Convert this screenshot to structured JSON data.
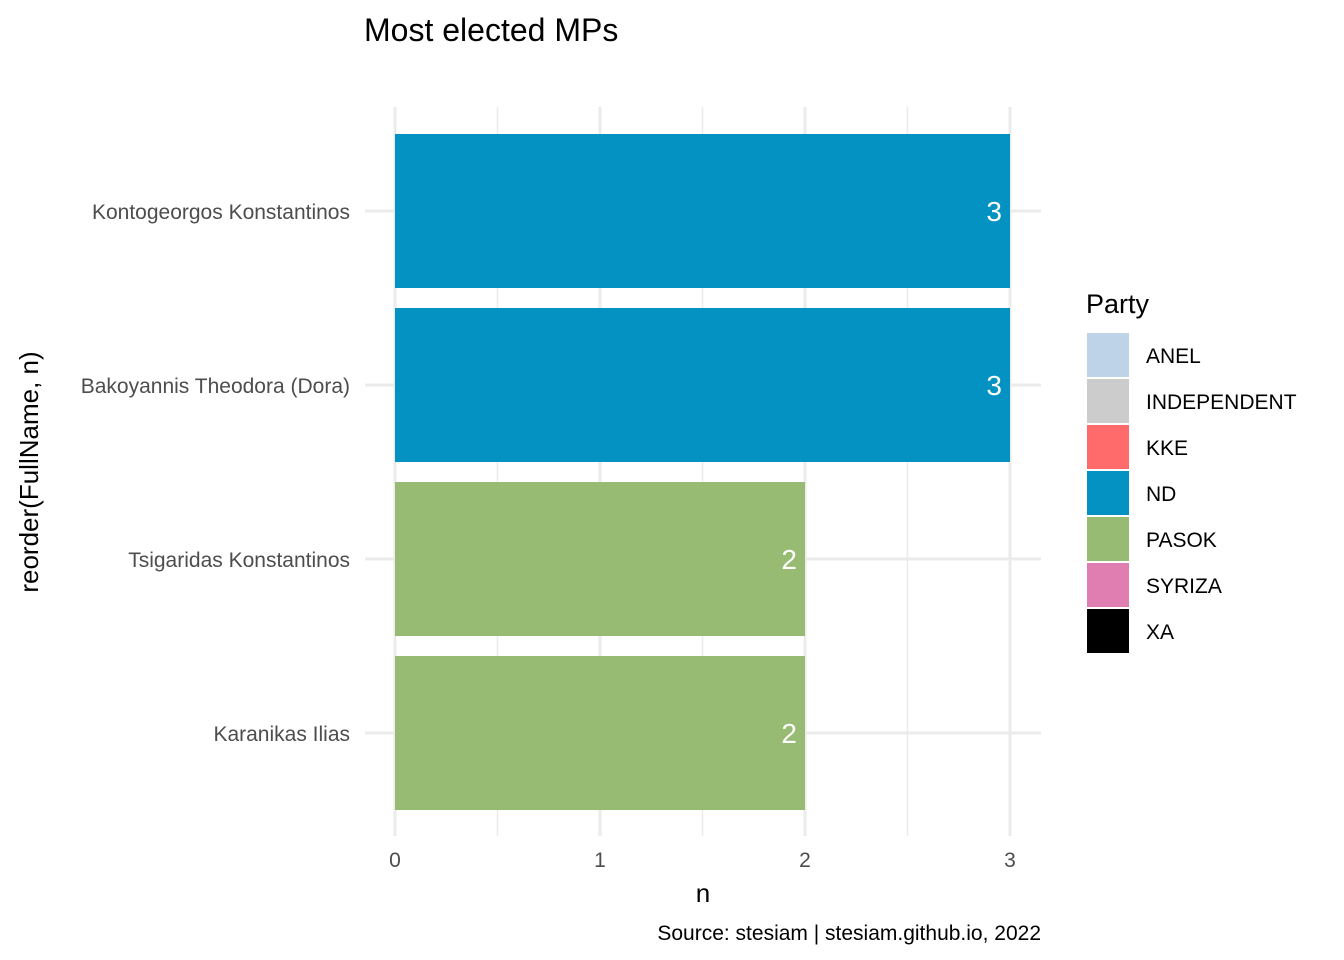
{
  "chart_data": {
    "type": "bar",
    "orientation": "horizontal",
    "title": "Most elected MPs",
    "xlabel": "n",
    "ylabel": "reorder(FullName, n)",
    "caption": "Source: stesiam | stesiam.github.io, 2022",
    "xlim": [
      0,
      3
    ],
    "x_ticks": [
      "0",
      "1",
      "2",
      "3"
    ],
    "grid": true,
    "categories": [
      "Kontogeorgos Konstantinos",
      "Bakoyannis Theodora (Dora)",
      "Tsigaridas Konstantinos",
      "Karanikas Ilias"
    ],
    "values": [
      3,
      3,
      2,
      2
    ],
    "bar_labels": [
      "3",
      "3",
      "2",
      "2"
    ],
    "bar_party": [
      "ND",
      "ND",
      "PASOK",
      "PASOK"
    ],
    "legend": {
      "title": "Party",
      "placement": "right",
      "items": [
        {
          "label": "ANEL",
          "color": "#bed2e8"
        },
        {
          "label": "INDEPENDENT",
          "color": "#cccccc"
        },
        {
          "label": "KKE",
          "color": "#ff6b6b"
        },
        {
          "label": "ND",
          "color": "#0492c2"
        },
        {
          "label": "PASOK",
          "color": "#97bb72"
        },
        {
          "label": "SYRIZA",
          "color": "#e07db1"
        },
        {
          "label": "XA",
          "color": "#000000"
        }
      ]
    }
  }
}
